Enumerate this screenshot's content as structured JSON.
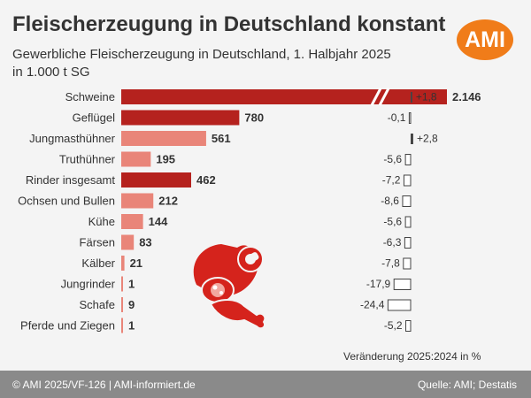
{
  "title": "Fleischerzeugung in Deutschland konstant",
  "subtitle_line1": "Gewerbliche Fleischerzeugung in Deutschland, 1. Halbjahr 2025",
  "subtitle_line2": "in 1.000 t SG",
  "logo_text": "AMI",
  "change_axis_label": "Veränderung 2025:2024 in %",
  "footer": {
    "left": "© AMI 2025/VF-126 | AMI-informiert.de",
    "right": "Quelle: AMI; Destatis"
  },
  "colors": {
    "bar_dark": "#b5221e",
    "bar_light": "#e98579",
    "change_positive": "#444444",
    "change_negative": "#ffffff",
    "logo": "#f07c19",
    "footer": "#8a8a8a"
  },
  "chart_data": {
    "type": "bar",
    "orientation": "horizontal",
    "unit": "1.000 t SG",
    "broken_axis_category": "Schweine",
    "categories": [
      "Schweine",
      "Geflügel",
      "Jungmasthühner",
      "Truthühner",
      "Rinder insgesamt",
      "Ochsen und Bullen",
      "Kühe",
      "Färsen",
      "Kälber",
      "Jungrinder",
      "Schafe",
      "Pferde und Ziegen"
    ],
    "values": [
      2146,
      780,
      561,
      195,
      462,
      212,
      144,
      83,
      21,
      1,
      9,
      1
    ],
    "value_labels": [
      "2.146",
      "780",
      "561",
      "195",
      "462",
      "212",
      "144",
      "83",
      "21",
      "1",
      "9",
      "1"
    ],
    "bar_shade": [
      "dark",
      "dark",
      "light",
      "light",
      "dark",
      "light",
      "light",
      "light",
      "light",
      "light",
      "light",
      "light"
    ],
    "changes": [
      1.8,
      -0.1,
      2.8,
      -5.6,
      -7.2,
      -8.6,
      -5.6,
      -6.3,
      -7.8,
      -17.9,
      -24.4,
      -5.2
    ],
    "change_labels": [
      "+1,8",
      "-0,1",
      "+2,8",
      "-5,6",
      "-7,2",
      "-8,6",
      "-5,6",
      "-6,3",
      "-7,8",
      "-17,9",
      "-24,4",
      "-5,2"
    ]
  }
}
